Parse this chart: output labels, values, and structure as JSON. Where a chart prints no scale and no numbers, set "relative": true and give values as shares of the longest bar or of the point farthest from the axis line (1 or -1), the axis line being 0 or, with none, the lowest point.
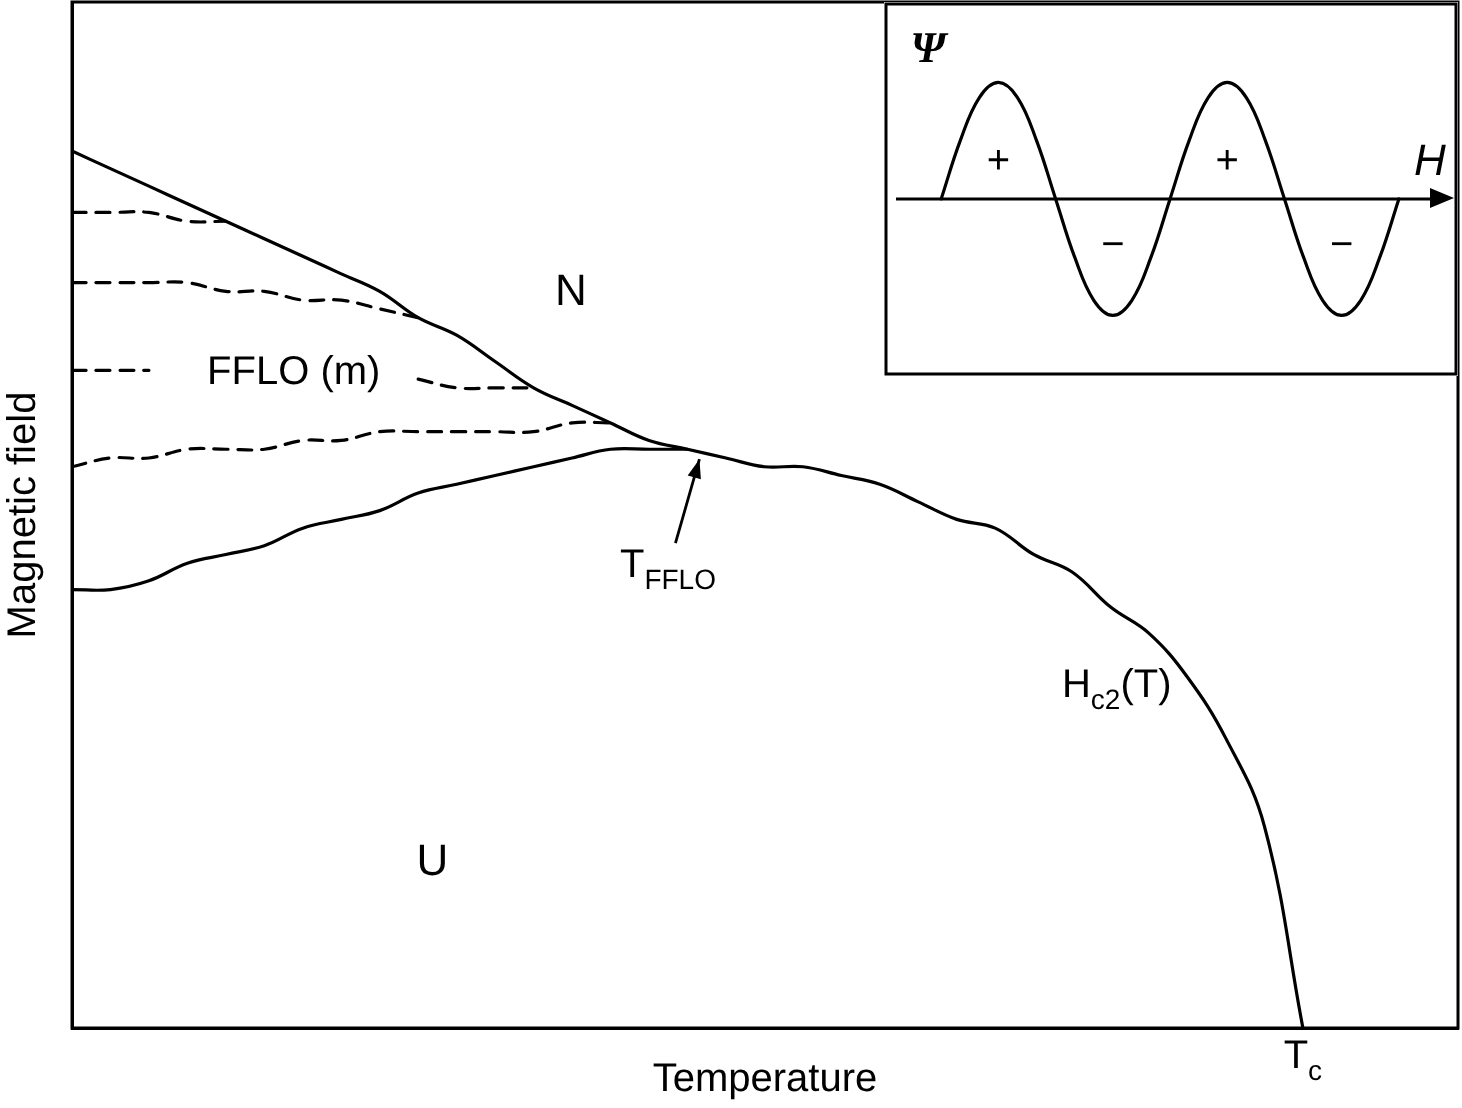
{
  "chart_data": [
    {
      "type": "line",
      "relative": true,
      "xlabel": "Temperature",
      "ylabel": "Magnetic field",
      "categories": [
        null,
        null,
        null,
        null,
        null,
        null,
        null,
        null,
        null,
        null,
        null,
        null,
        null,
        null,
        null,
        null,
        null,
        null,
        null,
        null,
        null,
        null,
        null,
        null,
        null,
        null,
        null,
        null,
        null,
        null,
        null,
        null,
        null
      ],
      "series": [
        {
          "name": "H$_{c2}$(T)",
          "color": "#000000",
          "values": [
            1,
            0.98,
            0.96,
            0.94,
            0.92,
            0.9,
            0.88,
            0.86,
            0.84,
            0.81,
            0.79,
            0.76,
            0.73,
            0.71,
            0.69,
            0.67,
            0.66,
            0.65,
            0.64,
            0.64,
            0.63,
            0.62,
            0.6,
            0.58,
            0.57,
            0.54,
            0.52,
            0.48,
            0.45,
            0.4,
            0.33,
            0.23,
            0
          ]
        },
        {
          "color": "#000000",
          "values": [
            0.5,
            0.5,
            0.51,
            0.53,
            0.54,
            0.55,
            0.57,
            0.58,
            0.59,
            0.61,
            0.62,
            0.63,
            0.64,
            0.65,
            0.66,
            0.66,
            0.66,
            null,
            null,
            null,
            null,
            null,
            null,
            null,
            null,
            null,
            null,
            null,
            null,
            null,
            null,
            null,
            null
          ]
        },
        {
          "color": "#000000",
          "line_style": "dashed",
          "values": [
            0.93,
            0.93,
            0.93,
            0.92,
            0.92,
            null,
            null,
            null,
            null,
            null,
            null,
            null,
            null,
            null,
            null,
            null,
            null,
            null,
            null,
            null,
            null,
            null,
            null,
            null,
            null,
            null,
            null,
            null,
            null,
            null,
            null,
            null,
            null
          ]
        },
        {
          "color": "#000000",
          "line_style": "dashed",
          "values": [
            0.85,
            0.85,
            0.85,
            0.85,
            0.84,
            0.84,
            0.83,
            0.83,
            0.82,
            0.81,
            null,
            null,
            null,
            null,
            null,
            null,
            null,
            null,
            null,
            null,
            null,
            null,
            null,
            null,
            null,
            null,
            null,
            null,
            null,
            null,
            null,
            null,
            null
          ]
        },
        {
          "color": "#000000",
          "line_style": "dashed",
          "values": [
            0.75,
            0.75,
            0.75,
            null,
            null,
            null,
            null,
            null,
            null,
            0.74,
            0.73,
            0.73,
            0.73,
            null,
            null,
            null,
            null,
            null,
            null,
            null,
            null,
            null,
            null,
            null,
            null,
            null,
            null,
            null,
            null,
            null,
            null,
            null,
            null
          ]
        },
        {
          "color": "#000000",
          "line_style": "dashed",
          "values": [
            0.64,
            0.65,
            0.65,
            0.66,
            0.66,
            0.66,
            0.67,
            0.67,
            0.68,
            0.68,
            0.68,
            0.68,
            0.68,
            0.69,
            0.69,
            null,
            null,
            null,
            null,
            null,
            null,
            null,
            null,
            null,
            null,
            null,
            null,
            null,
            null,
            null,
            null,
            null,
            null
          ]
        }
      ],
      "annotations": [
        "N",
        "U",
        "FFLO (m)",
        "T$_{FFLO}$",
        "T$_{c}$"
      ],
      "line_style": "solid",
      "marker": "none",
      "grid": false,
      "legend": false
    },
    {
      "type": "line",
      "relative": true,
      "xlabel": "H",
      "ylabel": "Ψ",
      "categories": [
        null,
        null,
        null,
        null,
        null,
        null,
        null,
        null,
        null,
        null,
        null,
        null,
        null,
        null,
        null,
        null,
        null,
        null,
        null,
        null,
        null,
        null,
        null,
        null,
        null
      ],
      "series": [
        {
          "color": "#000000",
          "values": [
            0,
            0.5,
            0.87,
            1,
            0.87,
            0.5,
            0,
            -0.5,
            -0.87,
            -1,
            -0.87,
            -0.5,
            0,
            0.5,
            0.87,
            1,
            0.87,
            0.5,
            0,
            -0.5,
            -0.87,
            -1,
            -0.87,
            -0.5,
            0
          ]
        }
      ],
      "annotations": [
        "+",
        "+",
        "−",
        "−"
      ],
      "line_style": "solid",
      "marker": "none",
      "grid": false,
      "legend": false
    }
  ]
}
